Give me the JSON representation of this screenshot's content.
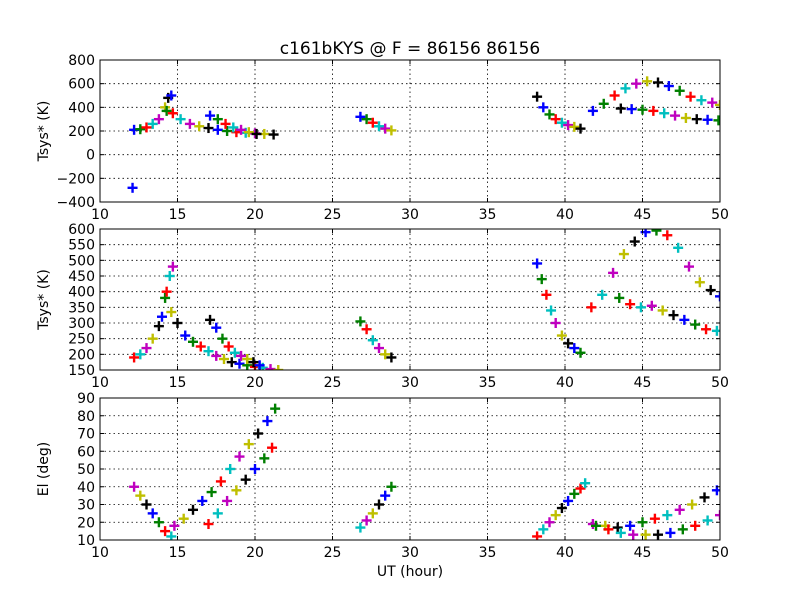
{
  "title": "c161bKYS @ F = 86156 86156",
  "colors": [
    "#0000ff",
    "#007f00",
    "#ff0000",
    "#00bfbf",
    "#bf00bf",
    "#bfbf00",
    "#000000"
  ],
  "chart_data": [
    {
      "type": "scatter",
      "marker": "plus",
      "title": "c161bKYS @ F = 86156 86156",
      "xlabel": "",
      "ylabel": "Tsys* (K)",
      "xlim": [
        10,
        50
      ],
      "ylim": [
        -400,
        800
      ],
      "xticks": [
        10,
        15,
        20,
        25,
        30,
        35,
        40,
        45,
        50
      ],
      "yticks": [
        -400,
        -200,
        0,
        200,
        400,
        600,
        800
      ],
      "grid": true,
      "tracks": [
        {
          "x": [
            12.2,
            12.6,
            13.0,
            13.4,
            13.8,
            14.2
          ],
          "y": [
            210,
            215,
            230,
            260,
            300,
            400
          ]
        },
        {
          "x": [
            14.4,
            14.6
          ],
          "y": [
            480,
            500
          ]
        },
        {
          "x": [
            14.3,
            14.7,
            15.2,
            15.8,
            16.4,
            17.0,
            17.6,
            18.2,
            18.8,
            19.4,
            20.0,
            20.6,
            21.2
          ],
          "y": [
            370,
            350,
            300,
            260,
            240,
            225,
            210,
            200,
            190,
            185,
            180,
            175,
            170
          ]
        },
        {
          "x": [
            17.1,
            17.6,
            18.1,
            18.6,
            19.1,
            19.6,
            20.1
          ],
          "y": [
            330,
            300,
            260,
            230,
            210,
            190,
            175
          ]
        },
        {
          "x": [
            26.8,
            27.2,
            27.6,
            28.0,
            28.4,
            28.8
          ],
          "y": [
            320,
            300,
            270,
            240,
            220,
            205
          ]
        },
        {
          "x": [
            38.2,
            38.6,
            39.0,
            39.4,
            39.8,
            40.2,
            40.6,
            41.0
          ],
          "y": [
            490,
            400,
            340,
            300,
            270,
            250,
            235,
            220
          ]
        },
        {
          "x": [
            41.8,
            42.5,
            43.2,
            43.9,
            44.6,
            45.3,
            46.0,
            46.7,
            47.4,
            48.1,
            48.8,
            49.5,
            50.0
          ],
          "y": [
            370,
            430,
            500,
            560,
            600,
            620,
            610,
            580,
            540,
            490,
            460,
            440,
            420
          ]
        },
        {
          "x": [
            43.6,
            44.3,
            45.0,
            45.7,
            46.4,
            47.1,
            47.8,
            48.5,
            49.2,
            49.9
          ],
          "y": [
            390,
            385,
            380,
            370,
            350,
            330,
            310,
            300,
            295,
            290
          ]
        }
      ],
      "extra_points": [
        {
          "x": 12.1,
          "y": -280
        }
      ]
    },
    {
      "type": "scatter",
      "marker": "plus",
      "title": "",
      "xlabel": "",
      "ylabel": "Tsys* (K)",
      "xlim": [
        10,
        50
      ],
      "ylim": [
        150,
        600
      ],
      "xticks": [
        10,
        15,
        20,
        25,
        30,
        35,
        40,
        45,
        50
      ],
      "yticks": [
        150,
        200,
        250,
        300,
        350,
        400,
        450,
        500,
        550,
        600
      ],
      "grid": true,
      "tracks": [
        {
          "x": [
            12.2,
            12.6,
            13.0,
            13.4,
            13.8,
            14.0,
            14.2
          ],
          "y": [
            190,
            200,
            220,
            250,
            290,
            320,
            380
          ]
        },
        {
          "x": [
            14.3,
            14.5,
            14.7
          ],
          "y": [
            400,
            450,
            480
          ]
        },
        {
          "x": [
            14.6,
            15.0,
            15.5,
            16.0,
            16.5,
            17.0,
            17.5,
            18.0,
            18.5,
            19.0,
            19.5,
            20.0,
            20.5,
            21.0,
            21.5
          ],
          "y": [
            335,
            300,
            260,
            240,
            225,
            210,
            195,
            185,
            175,
            170,
            165,
            160,
            157,
            153,
            150
          ]
        },
        {
          "x": [
            17.1,
            17.5,
            17.9,
            18.3,
            18.7,
            19.1,
            19.5,
            19.9,
            20.3
          ],
          "y": [
            310,
            285,
            250,
            225,
            205,
            195,
            185,
            175,
            165
          ]
        },
        {
          "x": [
            26.8,
            27.2,
            27.6,
            28.0,
            28.4,
            28.8
          ],
          "y": [
            305,
            280,
            245,
            220,
            200,
            190
          ]
        },
        {
          "x": [
            38.2,
            38.5,
            38.8,
            39.1,
            39.4,
            39.8,
            40.2,
            40.6,
            41.0
          ],
          "y": [
            490,
            440,
            390,
            340,
            300,
            260,
            235,
            220,
            205
          ]
        },
        {
          "x": [
            41.7,
            42.4,
            43.1,
            43.8,
            44.5,
            45.2,
            45.9,
            46.6,
            47.3,
            48.0,
            48.7,
            49.4,
            50.0
          ],
          "y": [
            350,
            390,
            460,
            520,
            560,
            590,
            595,
            580,
            540,
            480,
            430,
            405,
            385
          ]
        },
        {
          "x": [
            43.5,
            44.2,
            44.9,
            45.6,
            46.3,
            47.0,
            47.7,
            48.4,
            49.1,
            49.8
          ],
          "y": [
            380,
            360,
            350,
            355,
            340,
            325,
            310,
            295,
            280,
            275
          ]
        }
      ],
      "extra_points": []
    },
    {
      "type": "scatter",
      "marker": "plus",
      "title": "",
      "xlabel": "UT (hour)",
      "ylabel": "El (deg)",
      "xlim": [
        10,
        50
      ],
      "ylim": [
        10,
        90
      ],
      "xticks": [
        10,
        15,
        20,
        25,
        30,
        35,
        40,
        45,
        50
      ],
      "yticks": [
        10,
        20,
        30,
        40,
        50,
        60,
        70,
        80,
        90
      ],
      "grid": true,
      "tracks": [
        {
          "x": [
            12.2,
            12.6,
            13.0,
            13.4,
            13.8,
            14.2,
            14.6
          ],
          "y": [
            40,
            35,
            30,
            25,
            20,
            15,
            12
          ]
        },
        {
          "x": [
            14.8,
            15.4,
            16.0,
            16.6,
            17.2,
            17.8,
            18.4,
            19.0,
            19.6,
            20.2,
            20.8,
            21.3
          ],
          "y": [
            18,
            22,
            27,
            32,
            37,
            43,
            50,
            57,
            64,
            70,
            77,
            84
          ]
        },
        {
          "x": [
            17.0,
            17.6,
            18.2,
            18.8,
            19.4,
            20.0,
            20.6,
            21.1
          ],
          "y": [
            19,
            25,
            32,
            38,
            44,
            50,
            56,
            62
          ]
        },
        {
          "x": [
            26.8,
            27.2,
            27.6,
            28.0,
            28.4,
            28.8
          ],
          "y": [
            17,
            21,
            25,
            30,
            35,
            40
          ]
        },
        {
          "x": [
            38.2,
            38.6,
            39.0,
            39.4,
            39.8,
            40.2,
            40.6,
            41.0,
            41.3
          ],
          "y": [
            12,
            16,
            20,
            24,
            28,
            32,
            36,
            39,
            42
          ]
        },
        {
          "x": [
            41.8,
            42.6,
            43.4,
            44.2,
            45.0,
            45.8,
            46.6,
            47.4,
            48.2,
            49.0,
            49.8
          ],
          "y": [
            19,
            18,
            17,
            18,
            20,
            22,
            24,
            27,
            30,
            34,
            38
          ]
        },
        {
          "x": [
            42.0,
            42.8,
            43.6,
            44.4,
            45.2,
            46.0,
            46.8,
            47.6,
            48.4,
            49.2,
            50.0
          ],
          "y": [
            18,
            16,
            14,
            13,
            13,
            13,
            14,
            16,
            18,
            21,
            24
          ]
        }
      ],
      "extra_points": []
    }
  ]
}
